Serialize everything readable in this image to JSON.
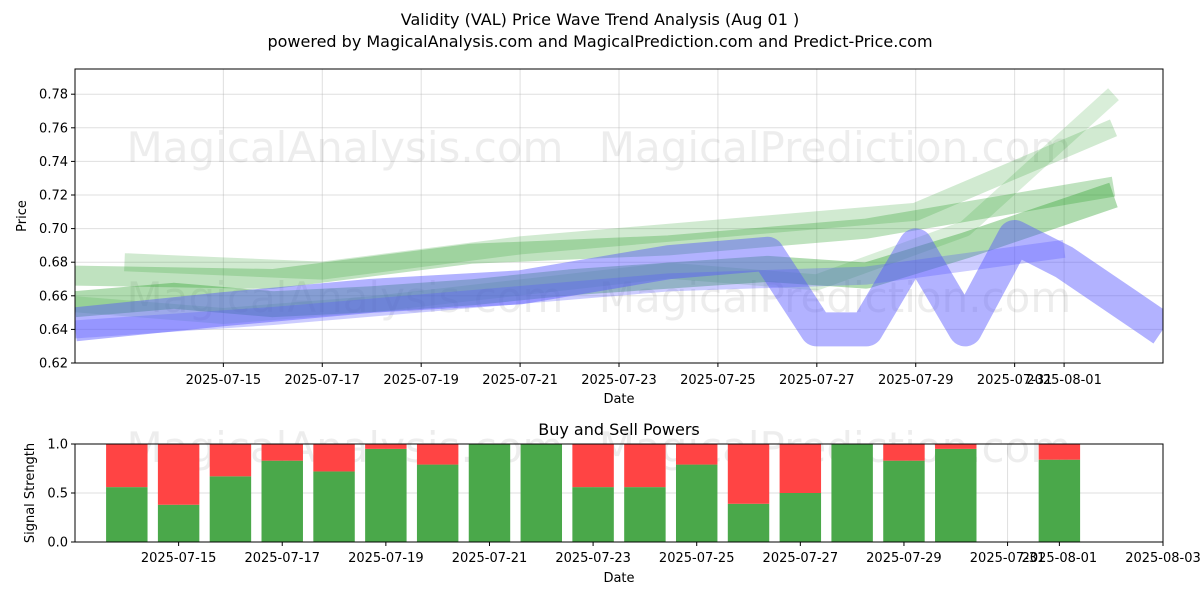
{
  "title": "Validity (VAL) Price Wave Trend Analysis (Aug 01 )",
  "subtitle": "powered by MagicalAnalysis.com and MagicalPrediction.com and Predict-Price.com",
  "watermarks": [
    "MagicalAnalysis.com",
    "MagicalPrediction.com"
  ],
  "colors": {
    "green": "#2ca02c",
    "blue": "#5555ff",
    "buy": "#4aa84a",
    "sell": "#ff4444"
  },
  "chart_data": [
    {
      "type": "line",
      "title": "",
      "xlabel": "Date",
      "ylabel": "Price",
      "xlim": [
        "2025-07-12",
        "2025-08-03"
      ],
      "ylim": [
        0.62,
        0.795
      ],
      "x_ticks": [
        "2025-07-15",
        "2025-07-17",
        "2025-07-19",
        "2025-07-21",
        "2025-07-23",
        "2025-07-25",
        "2025-07-27",
        "2025-07-29",
        "2025-07-31",
        "2025-08-01"
      ],
      "y_ticks": [
        "0.62",
        "0.64",
        "0.66",
        "0.68",
        "0.70",
        "0.72",
        "0.74",
        "0.76",
        "0.78"
      ],
      "grid": true,
      "series": [
        {
          "color": "green",
          "x": [
            "2025-07-12",
            "2025-07-14",
            "2025-07-16",
            "2025-07-18",
            "2025-07-20",
            "2025-07-22",
            "2025-07-24",
            "2025-07-26",
            "2025-07-28",
            "2025-07-30",
            "2025-08-01",
            "2025-08-02"
          ],
          "y": [
            0.655,
            0.66,
            0.655,
            0.658,
            0.662,
            0.668,
            0.672,
            0.676,
            0.672,
            0.69,
            0.71,
            0.72
          ]
        },
        {
          "color": "green",
          "x": [
            "2025-07-12",
            "2025-07-16",
            "2025-07-20",
            "2025-07-24",
            "2025-07-28",
            "2025-08-02"
          ],
          "y": [
            0.672,
            0.67,
            0.685,
            0.69,
            0.7,
            0.725
          ]
        },
        {
          "color": "green",
          "x": [
            "2025-07-13",
            "2025-07-17",
            "2025-07-21",
            "2025-07-25",
            "2025-07-29",
            "2025-08-02"
          ],
          "y": [
            0.68,
            0.675,
            0.69,
            0.7,
            0.71,
            0.76
          ]
        },
        {
          "color": "green",
          "x": [
            "2025-07-12",
            "2025-07-15",
            "2025-07-18",
            "2025-07-21",
            "2025-07-24",
            "2025-07-27",
            "2025-07-30",
            "2025-08-02"
          ],
          "y": [
            0.655,
            0.648,
            0.655,
            0.665,
            0.675,
            0.668,
            0.7,
            0.78
          ]
        },
        {
          "color": "blue",
          "x": [
            "2025-07-12",
            "2025-07-15",
            "2025-07-18",
            "2025-07-21",
            "2025-07-24",
            "2025-07-26",
            "2025-07-27",
            "2025-07-28",
            "2025-07-29",
            "2025-07-30",
            "2025-07-31",
            "2025-08-01",
            "2025-08-03"
          ],
          "y": [
            0.643,
            0.652,
            0.66,
            0.665,
            0.68,
            0.685,
            0.64,
            0.64,
            0.69,
            0.64,
            0.695,
            0.68,
            0.64
          ]
        },
        {
          "color": "blue",
          "x": [
            "2025-07-12",
            "2025-07-16",
            "2025-07-20",
            "2025-07-24",
            "2025-07-28",
            "2025-08-01"
          ],
          "y": [
            0.64,
            0.648,
            0.658,
            0.668,
            0.672,
            0.688
          ]
        }
      ]
    },
    {
      "type": "bar",
      "title": "Buy and Sell Powers",
      "xlabel": "Date",
      "ylabel": "Signal Strength",
      "xlim": [
        "2025-07-13",
        "2025-08-03"
      ],
      "ylim": [
        0,
        1
      ],
      "x_ticks": [
        "2025-07-15",
        "2025-07-17",
        "2025-07-19",
        "2025-07-21",
        "2025-07-23",
        "2025-07-25",
        "2025-07-27",
        "2025-07-29",
        "2025-07-31",
        "2025-08-01",
        "2025-08-03"
      ],
      "y_ticks": [
        "0.0",
        "0.5",
        "1.0"
      ],
      "categories": [
        "2025-07-14",
        "2025-07-15",
        "2025-07-16",
        "2025-07-17",
        "2025-07-18",
        "2025-07-19",
        "2025-07-20",
        "2025-07-21",
        "2025-07-22",
        "2025-07-23",
        "2025-07-24",
        "2025-07-25",
        "2025-07-26",
        "2025-07-27",
        "2025-07-28",
        "2025-07-29",
        "2025-07-30",
        "2025-08-01"
      ],
      "series": [
        {
          "values": [
            0.56,
            0.38,
            0.67,
            0.83,
            0.72,
            0.95,
            0.79,
            1.0,
            1.0,
            0.56,
            0.56,
            0.79,
            0.39,
            0.5,
            1.0,
            0.83,
            0.95,
            0.84
          ]
        },
        {
          "values": [
            0.44,
            0.62,
            0.33,
            0.17,
            0.28,
            0.05,
            0.21,
            0.0,
            0.0,
            0.44,
            0.44,
            0.21,
            0.61,
            0.5,
            0.0,
            0.17,
            0.05,
            0.16
          ]
        }
      ]
    }
  ]
}
